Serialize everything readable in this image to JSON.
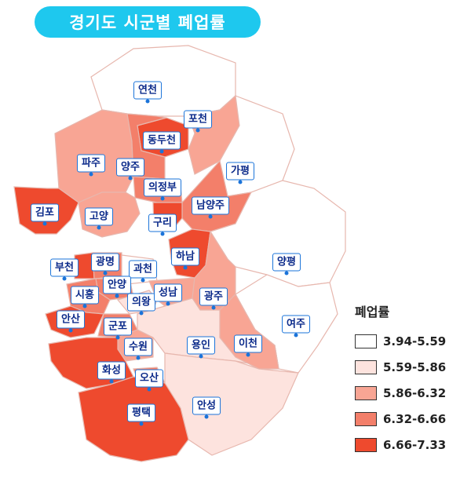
{
  "title": "경기도 시군별 폐업률",
  "colors": {
    "c1": "#ffffff",
    "c2": "#fde3de",
    "c3": "#f8a594",
    "c4": "#f37f6a",
    "c5": "#ee4a2e",
    "border": "#e7b7ae",
    "label_border": "#1a73d9",
    "title_bg": "#1ec8ee"
  },
  "legend": {
    "title": "폐업률",
    "items": [
      {
        "range": "3.94-5.59",
        "class": "c1"
      },
      {
        "range": "5.59-5.86",
        "class": "c2"
      },
      {
        "range": "5.86-6.32",
        "class": "c3"
      },
      {
        "range": "6.32-6.66",
        "class": "c4"
      },
      {
        "range": "6.66-7.33",
        "class": "c5"
      }
    ]
  },
  "regions": [
    {
      "name": "연천",
      "class": "c1"
    },
    {
      "name": "포천",
      "class": "c3"
    },
    {
      "name": "동두천",
      "class": "c5"
    },
    {
      "name": "파주",
      "class": "c3"
    },
    {
      "name": "양주",
      "class": "c4"
    },
    {
      "name": "가평",
      "class": "c1"
    },
    {
      "name": "의정부",
      "class": "c4"
    },
    {
      "name": "김포",
      "class": "c5"
    },
    {
      "name": "고양",
      "class": "c3"
    },
    {
      "name": "남양주",
      "class": "c4"
    },
    {
      "name": "구리",
      "class": "c5"
    },
    {
      "name": "하남",
      "class": "c5"
    },
    {
      "name": "부천",
      "class": "c5"
    },
    {
      "name": "광명",
      "class": "c4"
    },
    {
      "name": "과천",
      "class": "c1"
    },
    {
      "name": "양평",
      "class": "c1"
    },
    {
      "name": "안양",
      "class": "c4"
    },
    {
      "name": "시흥",
      "class": "c4"
    },
    {
      "name": "의왕",
      "class": "c2"
    },
    {
      "name": "성남",
      "class": "c3"
    },
    {
      "name": "광주",
      "class": "c3"
    },
    {
      "name": "안산",
      "class": "c5"
    },
    {
      "name": "군포",
      "class": "c4"
    },
    {
      "name": "여주",
      "class": "c1"
    },
    {
      "name": "수원",
      "class": "c3"
    },
    {
      "name": "용인",
      "class": "c2"
    },
    {
      "name": "이천",
      "class": "c3"
    },
    {
      "name": "화성",
      "class": "c5"
    },
    {
      "name": "오산",
      "class": "c4"
    },
    {
      "name": "안성",
      "class": "c2"
    },
    {
      "name": "평택",
      "class": "c5"
    }
  ]
}
